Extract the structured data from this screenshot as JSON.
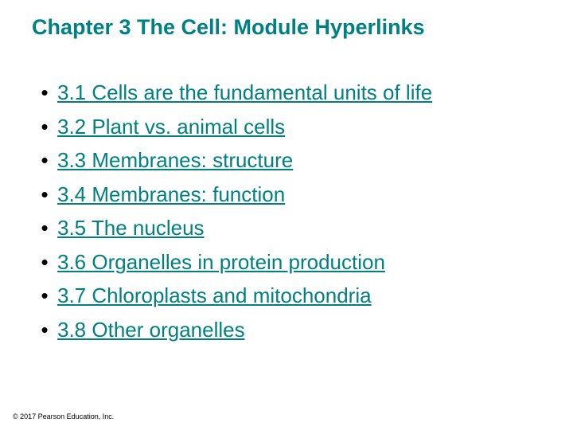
{
  "title": {
    "text": "Chapter 3 The Cell: Module Hyperlinks",
    "color": "#008080",
    "font_size_pt": 27,
    "font_weight": "bold"
  },
  "bullet": {
    "glyph": "•",
    "color": "#000000",
    "font_size_pt": 26
  },
  "link_style": {
    "color": "#008080",
    "underline": true,
    "font_size_pt": 26
  },
  "modules": [
    {
      "label": "3.1 Cells are the fundamental units of life"
    },
    {
      "label": "3.2 Plant vs. animal cells"
    },
    {
      "label": "3.3 Membranes: structure"
    },
    {
      "label": "3.4 Membranes: function"
    },
    {
      "label": "3.5 The nucleus"
    },
    {
      "label": "3.6 Organelles in protein production"
    },
    {
      "label": "3.7 Chloroplasts and mitochondria"
    },
    {
      "label": "3.8 Other organelles"
    }
  ],
  "footer": {
    "text": "© 2017 Pearson Education, Inc.",
    "font_size_pt": 9,
    "color": "#000000"
  },
  "background_color": "#ffffff"
}
